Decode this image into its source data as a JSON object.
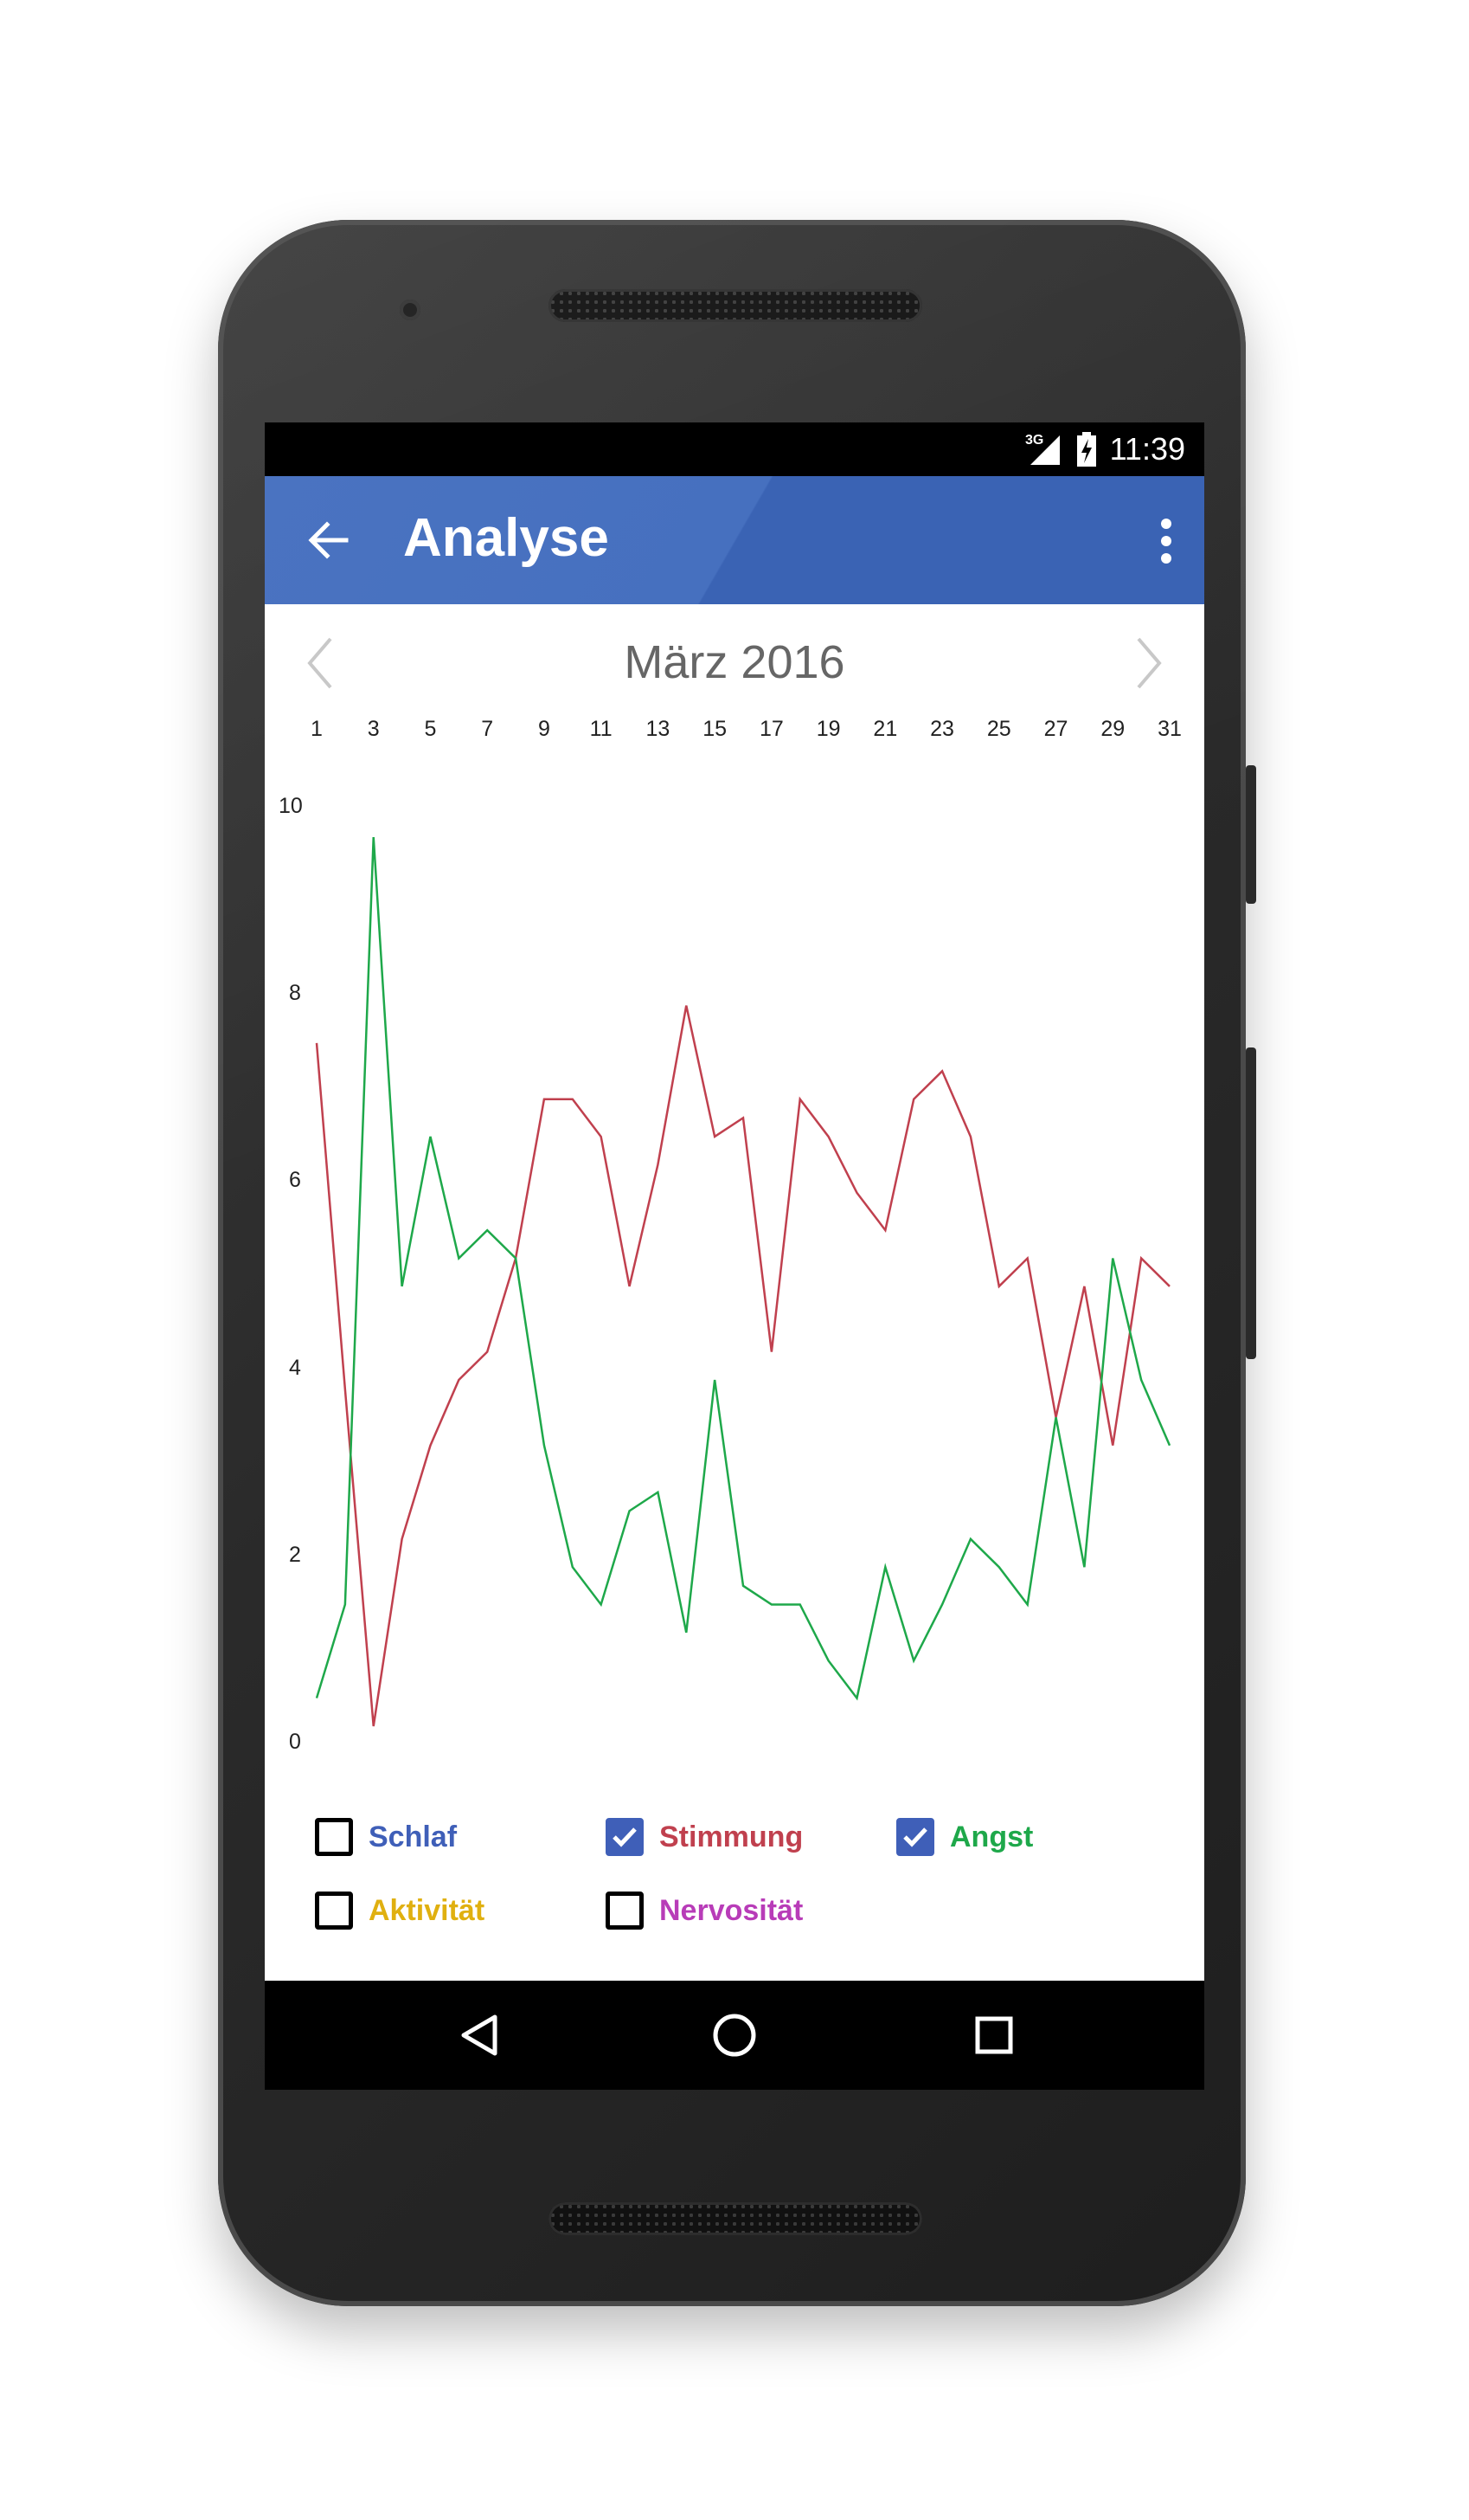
{
  "status_bar": {
    "network": "3G",
    "time": "11:39"
  },
  "app_bar": {
    "title": "Analyse",
    "bg_color": "#4670bf"
  },
  "calendar": {
    "month_label": "März 2016"
  },
  "chart_data": {
    "type": "line",
    "x_tick_labels": [
      "1",
      "3",
      "5",
      "7",
      "9",
      "11",
      "13",
      "15",
      "17",
      "19",
      "21",
      "23",
      "25",
      "27",
      "29",
      "31"
    ],
    "y_tick_labels": [
      "10",
      "8",
      "6",
      "4",
      "2",
      "0"
    ],
    "xlim": [
      1,
      31
    ],
    "ylim": [
      0,
      10
    ],
    "x": [
      1,
      2,
      3,
      4,
      5,
      6,
      7,
      8,
      9,
      10,
      11,
      12,
      13,
      14,
      15,
      16,
      17,
      18,
      19,
      20,
      21,
      22,
      23,
      24,
      25,
      26,
      27,
      28,
      29,
      30,
      31
    ],
    "series": [
      {
        "name": "Stimmung",
        "color": "#c0404e",
        "values": [
          7.3,
          3.6,
          0,
          2.0,
          3.0,
          3.7,
          4.0,
          5.0,
          6.7,
          6.7,
          6.3,
          4.7,
          6.0,
          7.7,
          6.3,
          6.5,
          4.0,
          6.7,
          6.3,
          5.7,
          5.3,
          6.7,
          7.0,
          6.3,
          4.7,
          5.0,
          3.3,
          4.7,
          3.0,
          5.0,
          4.7
        ]
      },
      {
        "name": "Angst",
        "color": "#1ea84a",
        "values": [
          0.3,
          1.3,
          9.5,
          4.7,
          6.3,
          5.0,
          5.3,
          5.0,
          3.0,
          1.7,
          1.3,
          2.3,
          2.5,
          1.0,
          3.7,
          1.5,
          1.3,
          1.3,
          0.7,
          0.3,
          1.7,
          0.7,
          1.3,
          2.0,
          1.7,
          1.3,
          3.3,
          1.7,
          5.0,
          3.7,
          3.0
        ]
      }
    ]
  },
  "legend": [
    {
      "label": "Schlaf",
      "color": "#3f5fb8",
      "checked": false
    },
    {
      "label": "Stimmung",
      "color": "#c0404e",
      "checked": true
    },
    {
      "label": "Angst",
      "color": "#1ea84a",
      "checked": true
    },
    {
      "label": "Aktivität",
      "color": "#e0b010",
      "checked": false
    },
    {
      "label": "Nervosität",
      "color": "#b83cb8",
      "checked": false
    }
  ],
  "nav": {
    "back": "back-triangle-icon",
    "home": "home-circle-icon",
    "recents": "recents-square-icon"
  }
}
